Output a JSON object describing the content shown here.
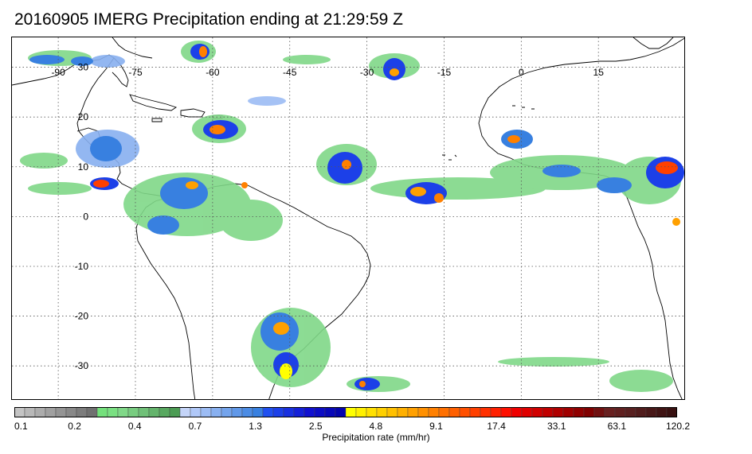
{
  "title": "20160905 IMERG Precipitation ending at 21:29:59 Z",
  "map": {
    "region": "Tropical Atlantic",
    "lon_range": [
      -99,
      32
    ],
    "lat_range": [
      -37,
      36
    ],
    "gridlines": "dotted, every 15° longitude and 10° latitude",
    "lon_labels": [
      "-90",
      "-75",
      "-60",
      "-45",
      "-30",
      "-15",
      "0",
      "15"
    ],
    "lat_labels": [
      "30",
      "20",
      "10",
      "0",
      "-10",
      "-20",
      "-30"
    ]
  },
  "legend": {
    "label": "Precipitation rate (mm/hr)",
    "tick_labels": [
      "0.1",
      "0.2",
      "0.4",
      "0.7",
      "1.3",
      "2.5",
      "4.8",
      "9.1",
      "17.4",
      "33.1",
      "63.1",
      "120.2"
    ],
    "colors": [
      "#c4c4c4",
      "#b8b8b8",
      "#acacac",
      "#a0a0a0",
      "#949494",
      "#888888",
      "#7c7c7c",
      "#707070",
      "#74e07c",
      "#7ae082",
      "#80d888",
      "#78cc80",
      "#70c078",
      "#64b46c",
      "#58a860",
      "#4c9c54",
      "#c4d4f8",
      "#b0c8f8",
      "#9cbcf4",
      "#88b0f0",
      "#74a4ec",
      "#6098e8",
      "#4c8ce4",
      "#3880e0",
      "#2050f0",
      "#1c40e8",
      "#1830e0",
      "#1420d8",
      "#1010d0",
      "#0c0cc4",
      "#0808b8",
      "#0404ac",
      "#ffff00",
      "#fff000",
      "#ffe000",
      "#ffd000",
      "#ffc000",
      "#ffb000",
      "#ffa000",
      "#ff9000",
      "#ff8000",
      "#ff7000",
      "#ff6000",
      "#ff5000",
      "#ff4000",
      "#ff3000",
      "#ff2000",
      "#ff1000",
      "#f00000",
      "#e00000",
      "#d00000",
      "#c00000",
      "#b00000",
      "#a00000",
      "#900000",
      "#800000",
      "#701010",
      "#682020",
      "#602020",
      "#582020",
      "#501c1c",
      "#481818",
      "#401414",
      "#381010"
    ]
  }
}
